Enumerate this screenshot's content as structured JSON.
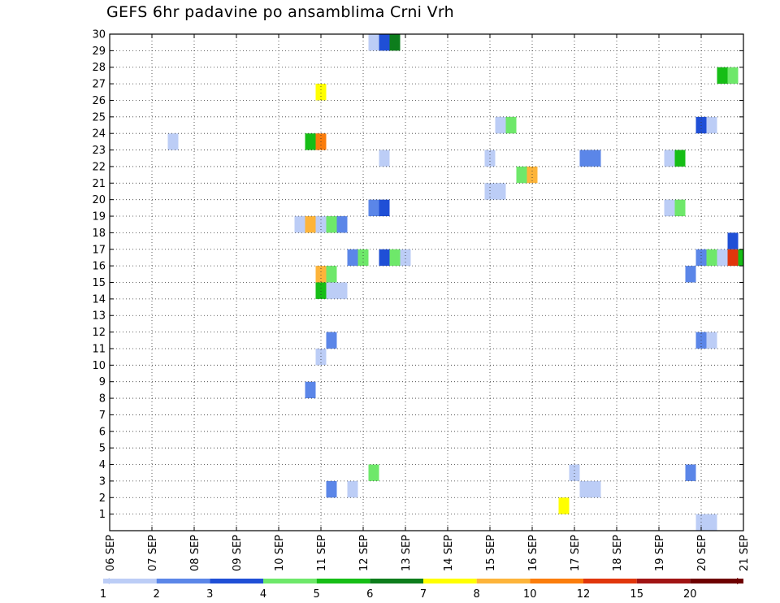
{
  "chart_data": {
    "type": "heatmap",
    "title": "GEFS 6hr padavine po ansamblima Crni Vrh",
    "xlabel": "",
    "ylabel": "",
    "x_tick_labels": [
      "06 SEP",
      "07 SEP",
      "08 SEP",
      "09 SEP",
      "10 SEP",
      "11 SEP",
      "12 SEP",
      "13 SEP",
      "14 SEP",
      "15 SEP",
      "16 SEP",
      "17 SEP",
      "18 SEP",
      "19 SEP",
      "20 SEP",
      "21 SEP"
    ],
    "xlim": [
      0,
      15
    ],
    "y_tick_labels": [
      "1",
      "2",
      "3",
      "4",
      "5",
      "6",
      "7",
      "8",
      "9",
      "10",
      "11",
      "12",
      "13",
      "14",
      "15",
      "16",
      "17",
      "18",
      "19",
      "20",
      "21",
      "22",
      "23",
      "24",
      "25",
      "26",
      "27",
      "28",
      "29",
      "30"
    ],
    "ylim": [
      0,
      30
    ],
    "grid": true,
    "legend": {
      "placement": "bottom",
      "labels": [
        "1",
        "2",
        "3",
        "4",
        "5",
        "6",
        "7",
        "8",
        "10",
        "12",
        "15",
        "20"
      ],
      "colors": [
        "#bccdf6",
        "#5b86e8",
        "#1f4fd6",
        "#6ee86a",
        "#16be16",
        "#0d7d1c",
        "#ffff00",
        "#fdb43a",
        "#fb7d0c",
        "#e1360c",
        "#a11414",
        "#6e0000"
      ]
    },
    "cells": [
      {
        "day": 6.25,
        "member": 30,
        "color": "#bccdf6"
      },
      {
        "day": 6.5,
        "member": 30,
        "color": "#1f4fd6"
      },
      {
        "day": 6.75,
        "member": 30,
        "color": "#0d7d1c"
      },
      {
        "day": 14.5,
        "member": 28,
        "color": "#16be16"
      },
      {
        "day": 14.75,
        "member": 28,
        "color": "#6ee86a"
      },
      {
        "day": 5.0,
        "member": 27,
        "color": "#ffff00"
      },
      {
        "day": 9.25,
        "member": 25,
        "color": "#bccdf6"
      },
      {
        "day": 9.5,
        "member": 25,
        "color": "#6ee86a"
      },
      {
        "day": 14.0,
        "member": 25,
        "color": "#1f4fd6"
      },
      {
        "day": 14.25,
        "member": 25,
        "color": "#bccdf6"
      },
      {
        "day": 1.5,
        "member": 24,
        "color": "#bccdf6"
      },
      {
        "day": 4.75,
        "member": 24,
        "color": "#16be16"
      },
      {
        "day": 5.0,
        "member": 24,
        "color": "#fb7d0c"
      },
      {
        "day": 6.5,
        "member": 23,
        "color": "#bccdf6"
      },
      {
        "day": 9.0,
        "member": 23,
        "color": "#bccdf6"
      },
      {
        "day": 11.25,
        "member": 23,
        "color": "#5b86e8"
      },
      {
        "day": 11.5,
        "member": 23,
        "color": "#5b86e8"
      },
      {
        "day": 13.25,
        "member": 23,
        "color": "#bccdf6"
      },
      {
        "day": 13.5,
        "member": 23,
        "color": "#16be16"
      },
      {
        "day": 9.75,
        "member": 22,
        "color": "#6ee86a"
      },
      {
        "day": 10.0,
        "member": 22,
        "color": "#fdb43a"
      },
      {
        "day": 9.0,
        "member": 21,
        "color": "#bccdf6"
      },
      {
        "day": 9.25,
        "member": 21,
        "color": "#bccdf6"
      },
      {
        "day": 6.25,
        "member": 20,
        "color": "#5b86e8"
      },
      {
        "day": 6.5,
        "member": 20,
        "color": "#1f4fd6"
      },
      {
        "day": 13.25,
        "member": 20,
        "color": "#bccdf6"
      },
      {
        "day": 13.5,
        "member": 20,
        "color": "#6ee86a"
      },
      {
        "day": 4.5,
        "member": 19,
        "color": "#bccdf6"
      },
      {
        "day": 4.75,
        "member": 19,
        "color": "#fdb43a"
      },
      {
        "day": 5.0,
        "member": 19,
        "color": "#bccdf6"
      },
      {
        "day": 5.25,
        "member": 19,
        "color": "#6ee86a"
      },
      {
        "day": 5.5,
        "member": 19,
        "color": "#5b86e8"
      },
      {
        "day": 14.75,
        "member": 18,
        "color": "#1f4fd6"
      },
      {
        "day": 5.75,
        "member": 17,
        "color": "#5b86e8"
      },
      {
        "day": 6.0,
        "member": 17,
        "color": "#6ee86a"
      },
      {
        "day": 6.5,
        "member": 17,
        "color": "#1f4fd6"
      },
      {
        "day": 6.75,
        "member": 17,
        "color": "#6ee86a"
      },
      {
        "day": 7.0,
        "member": 17,
        "color": "#bccdf6"
      },
      {
        "day": 14.0,
        "member": 17,
        "color": "#5b86e8"
      },
      {
        "day": 14.25,
        "member": 17,
        "color": "#6ee86a"
      },
      {
        "day": 14.5,
        "member": 17,
        "color": "#bccdf6"
      },
      {
        "day": 14.75,
        "member": 17,
        "color": "#e1360c"
      },
      {
        "day": 15.0,
        "member": 17,
        "color": "#16be16"
      },
      {
        "day": 5.0,
        "member": 16,
        "color": "#fdb43a"
      },
      {
        "day": 5.25,
        "member": 16,
        "color": "#6ee86a"
      },
      {
        "day": 13.75,
        "member": 16,
        "color": "#5b86e8"
      },
      {
        "day": 5.0,
        "member": 15,
        "color": "#16be16"
      },
      {
        "day": 5.25,
        "member": 15,
        "color": "#bccdf6"
      },
      {
        "day": 5.5,
        "member": 15,
        "color": "#bccdf6"
      },
      {
        "day": 5.25,
        "member": 12,
        "color": "#5b86e8"
      },
      {
        "day": 14.0,
        "member": 12,
        "color": "#5b86e8"
      },
      {
        "day": 14.25,
        "member": 12,
        "color": "#bccdf6"
      },
      {
        "day": 5.0,
        "member": 11,
        "color": "#bccdf6"
      },
      {
        "day": 4.75,
        "member": 9,
        "color": "#5b86e8"
      },
      {
        "day": 6.25,
        "member": 4,
        "color": "#6ee86a"
      },
      {
        "day": 11.0,
        "member": 4,
        "color": "#bccdf6"
      },
      {
        "day": 13.75,
        "member": 4,
        "color": "#5b86e8"
      },
      {
        "day": 5.25,
        "member": 3,
        "color": "#5b86e8"
      },
      {
        "day": 5.75,
        "member": 3,
        "color": "#bccdf6"
      },
      {
        "day": 11.25,
        "member": 3,
        "color": "#bccdf6"
      },
      {
        "day": 11.5,
        "member": 3,
        "color": "#bccdf6"
      },
      {
        "day": 10.75,
        "member": 2,
        "color": "#ffff00"
      },
      {
        "day": 14.0,
        "member": 1,
        "color": "#bccdf6"
      },
      {
        "day": 14.25,
        "member": 1,
        "color": "#bccdf6"
      }
    ]
  }
}
